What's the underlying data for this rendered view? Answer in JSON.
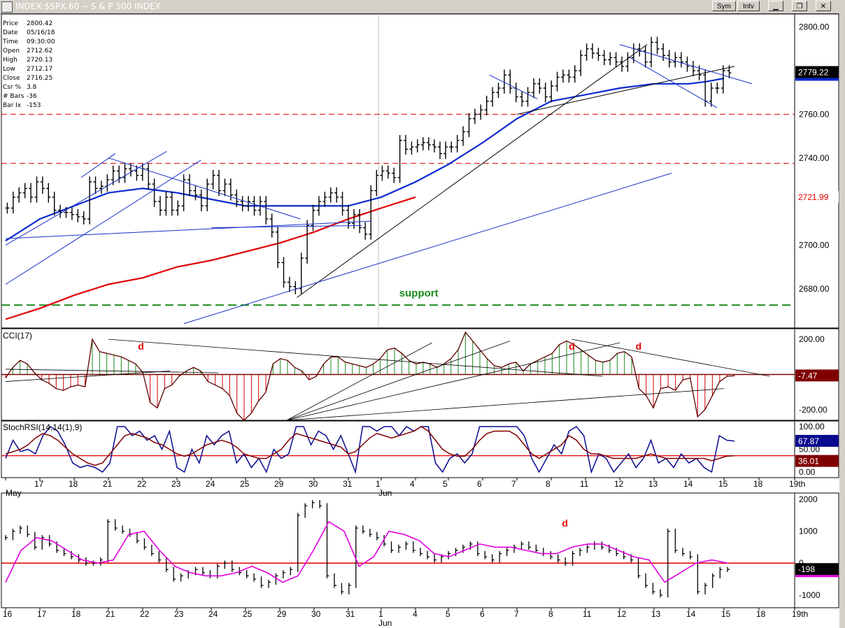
{
  "window": {
    "title": "INDEX:$SPX.60 -- S & P 500 INDEX",
    "buttons": [
      "Sym",
      "Intv"
    ]
  },
  "infobox": [
    {
      "k": "Price",
      "v": "2800.42"
    },
    {
      "k": "Date",
      "v": "05/16/18"
    },
    {
      "k": "Time",
      "v": "09:30:00"
    },
    {
      "k": "Open",
      "v": "2712.62"
    },
    {
      "k": "High",
      "v": "2720.13"
    },
    {
      "k": "Low",
      "v": "2712.17"
    },
    {
      "k": "Close",
      "v": "2716.25"
    },
    {
      "k": "Csr %",
      "v": "3.8"
    },
    {
      "k": "# Bars",
      "v": "-36"
    },
    {
      "k": "Bar Ix",
      "v": "-153"
    }
  ],
  "colors": {
    "price_bars": "#000000",
    "ma_blue": "#0a2ad0",
    "ma_red": "#e00000",
    "support": "#1a8a1a",
    "cci_pos": "#1a8a1a",
    "cci_neg": "#d00000",
    "stoch_k": "#0a0a90",
    "stoch_d": "#800000",
    "osc_ma": "#e000e0",
    "trendline_blue": "#1a30c8"
  },
  "chart_data": [
    {
      "type": "line",
      "panel": "price",
      "title": "INDEX:$SPX.60 -- S & P 500 INDEX",
      "y_ticks": [
        "2800.00",
        "2760.00",
        "2740.00",
        "2700.00",
        "2680.00"
      ],
      "ylim": [
        2662,
        2806
      ],
      "price_labels": [
        {
          "text": "2779.22",
          "value": 2779.22,
          "style": "dark"
        },
        {
          "text": "2721.99",
          "value": 2721.99,
          "style": "red"
        }
      ],
      "horizontal_levels": [
        {
          "value": 2760,
          "style": "red-dash"
        },
        {
          "value": 2737.5,
          "style": "red-dash"
        },
        {
          "value": 2672.5,
          "style": "green-dash"
        }
      ],
      "annotations": [
        {
          "text": "support",
          "x": 12.1,
          "y": 2676.5,
          "color": "green"
        }
      ],
      "closes": [
        2717,
        2722,
        2724,
        2726,
        2722,
        2729,
        2726,
        2722,
        2716,
        2715,
        2715,
        2714,
        2713,
        2712,
        2729,
        2726,
        2727,
        2730,
        2734,
        2731,
        2735,
        2734,
        2732,
        2735,
        2728,
        2720,
        2716,
        2722,
        2716,
        2718,
        2730,
        2725,
        2723,
        2718,
        2728,
        2732,
        2725,
        2728,
        2723,
        2720,
        2718,
        2720,
        2716,
        2720,
        2712,
        2706,
        2692,
        2683,
        2681,
        2680,
        2694,
        2709,
        2716,
        2720,
        2722,
        2724,
        2722,
        2716,
        2710,
        2714,
        2708,
        2705,
        2725,
        2732,
        2734,
        2733,
        2731,
        2748,
        2744,
        2745,
        2746,
        2747,
        2746,
        2745,
        2742,
        2745,
        2745,
        2748,
        2752,
        2758,
        2760,
        2762,
        2766,
        2770,
        2772,
        2778,
        2772,
        2768,
        2766,
        2770,
        2774,
        2772,
        2768,
        2773,
        2777,
        2778,
        2777,
        2780,
        2787,
        2790,
        2788,
        2787,
        2785,
        2786,
        2784,
        2782,
        2786,
        2790,
        2789,
        2784,
        2793,
        2790,
        2787,
        2784,
        2786,
        2784,
        2782,
        2780,
        2778,
        2766,
        2772,
        2772,
        2780,
        2779
      ],
      "series": [
        {
          "name": "",
          "style": "blue-ma",
          "points": [
            [
              0,
              2702
            ],
            [
              2,
              2712
            ],
            [
              4,
              2718
            ],
            [
              6,
              2724
            ],
            [
              8,
              2726
            ],
            [
              10,
              2724
            ],
            [
              12,
              2721
            ],
            [
              14,
              2718
            ],
            [
              16,
              2718
            ],
            [
              18,
              2718
            ],
            [
              20,
              2718
            ],
            [
              22,
              2722
            ],
            [
              24,
              2729
            ],
            [
              26,
              2737
            ],
            [
              28,
              2747
            ],
            [
              30,
              2758
            ],
            [
              32,
              2766
            ],
            [
              34,
              2769
            ],
            [
              36,
              2772
            ],
            [
              38,
              2774
            ],
            [
              40,
              2774
            ],
            [
              41,
              2775
            ],
            [
              42,
              2776.5
            ]
          ]
        },
        {
          "name": "",
          "style": "red-ma",
          "points": [
            [
              0,
              2666
            ],
            [
              2,
              2671
            ],
            [
              4,
              2677
            ],
            [
              6,
              2682
            ],
            [
              8,
              2685
            ],
            [
              10,
              2690
            ],
            [
              12,
              2693
            ],
            [
              14,
              2697
            ],
            [
              16,
              2701
            ],
            [
              18,
              2706
            ],
            [
              20,
              2712
            ],
            [
              22,
              2717
            ],
            [
              24,
              2722
            ]
          ]
        }
      ]
    },
    {
      "type": "bar",
      "panel": "cci",
      "title": "CCI(17)",
      "y_ticks": [
        "200.00",
        "-200.00"
      ],
      "ylim": [
        -260,
        260
      ],
      "last_value_label": "-7.47",
      "annotations": [
        {
          "text": "d",
          "x": 3.95
        },
        {
          "text": "d",
          "x": 16.6
        },
        {
          "text": "d",
          "x": 18.55
        }
      ],
      "values": [
        -20,
        40,
        80,
        60,
        10,
        -30,
        -50,
        -80,
        -90,
        -70,
        -60,
        -70,
        200,
        130,
        120,
        110,
        100,
        80,
        60,
        10,
        -160,
        -190,
        -80,
        -60,
        -10,
        20,
        40,
        20,
        -40,
        -60,
        -80,
        -120,
        -220,
        -260,
        -220,
        -150,
        -100,
        60,
        90,
        80,
        40,
        20,
        -30,
        -10,
        60,
        100,
        100,
        70,
        60,
        50,
        40,
        60,
        90,
        140,
        150,
        120,
        80,
        60,
        70,
        60,
        40,
        60,
        90,
        140,
        240,
        190,
        140,
        90,
        50,
        40,
        60,
        70,
        20,
        60,
        80,
        100,
        120,
        170,
        190,
        170,
        140,
        110,
        80,
        70,
        80,
        120,
        130,
        100,
        -80,
        -120,
        -190,
        -80,
        -70,
        -90,
        -30,
        -20,
        -240,
        -200,
        -120,
        -40,
        -10,
        -7.47
      ]
    },
    {
      "type": "line",
      "panel": "stochrsi",
      "title": "StochRSI(14,14(1),9)",
      "y_ticks": [
        "100.00",
        "50.00",
        "0.00"
      ],
      "ylim": [
        0,
        100
      ],
      "last_value_labels": [
        {
          "text": "67.87",
          "series": "K"
        },
        {
          "text": "36.01",
          "series": "D"
        }
      ],
      "series": [
        {
          "name": "K",
          "values": [
            30,
            70,
            45,
            50,
            40,
            80,
            100,
            90,
            60,
            20,
            10,
            15,
            10,
            0,
            20,
            100,
            100,
            80,
            90,
            70,
            80,
            50,
            90,
            10,
            0,
            50,
            20,
            80,
            60,
            80,
            90,
            20,
            40,
            10,
            30,
            0,
            50,
            30,
            40,
            100,
            100,
            60,
            90,
            80,
            50,
            80,
            40,
            0,
            100,
            100,
            90,
            100,
            100,
            80,
            100,
            90,
            100,
            100,
            20,
            0,
            30,
            40,
            20,
            40,
            100,
            100,
            100,
            100,
            100,
            100,
            80,
            30,
            0,
            30,
            60,
            40,
            90,
            100,
            80,
            0,
            40,
            30,
            0,
            20,
            40,
            10,
            30,
            70,
            20,
            30,
            10,
            40,
            20,
            30,
            10,
            0,
            80,
            70,
            68
          ]
        },
        {
          "name": "D",
          "values": [
            40,
            45,
            50,
            60,
            75,
            85,
            80,
            70,
            55,
            40,
            30,
            20,
            15,
            20,
            40,
            60,
            80,
            85,
            80,
            75,
            65,
            60,
            50,
            40,
            35,
            40,
            50,
            60,
            65,
            70,
            65,
            55,
            40,
            35,
            30,
            30,
            40,
            50,
            70,
            85,
            80,
            75,
            70,
            65,
            60,
            55,
            40,
            45,
            60,
            75,
            85,
            80,
            75,
            80,
            85,
            90,
            100,
            90,
            70,
            50,
            40,
            35,
            35,
            50,
            70,
            85,
            90,
            90,
            90,
            80,
            60,
            40,
            30,
            40,
            50,
            60,
            80,
            70,
            50,
            40,
            40,
            35,
            30,
            30,
            30,
            30,
            35,
            40,
            35,
            30,
            30,
            30,
            30,
            30,
            30,
            25,
            30,
            35,
            36
          ]
        }
      ],
      "level": 36.01
    },
    {
      "type": "line",
      "panel": "oscillator",
      "y_ticks": [
        "2000",
        "1000",
        "0",
        "-1000"
      ],
      "ylim": [
        -1400,
        2200
      ],
      "last_value_label": "-198",
      "annotations": [
        {
          "text": "d",
          "x": 16.4
        }
      ],
      "closes": [
        800,
        1000,
        1100,
        900,
        500,
        800,
        600,
        400,
        300,
        200,
        100,
        0,
        0,
        100,
        1300,
        1100,
        1000,
        900,
        700,
        500,
        300,
        100,
        -200,
        -500,
        -400,
        -300,
        -200,
        -300,
        -400,
        -100,
        0,
        -200,
        -300,
        -400,
        -500,
        -700,
        -600,
        -400,
        -300,
        -200,
        1500,
        1800,
        1900,
        1800,
        -400,
        -700,
        -900,
        -700,
        1100,
        1000,
        900,
        800,
        600,
        400,
        500,
        600,
        400,
        300,
        200,
        100,
        200,
        300,
        400,
        500,
        600,
        300,
        200,
        100,
        300,
        400,
        500,
        600,
        500,
        400,
        300,
        200,
        100,
        0,
        300,
        400,
        500,
        600,
        500,
        400,
        300,
        200,
        100,
        -400,
        -700,
        -900,
        -1000,
        1000,
        400,
        300,
        200,
        -900,
        -700,
        -400,
        -200,
        -198
      ],
      "series": [
        {
          "name": "",
          "style": "magenta",
          "values": [
            -600,
            400,
            800,
            700,
            400,
            100,
            0,
            100,
            900,
            1000,
            400,
            -100,
            -300,
            -400,
            -400,
            -300,
            -100,
            -300,
            -600,
            -400,
            400,
            1300,
            1000,
            -100,
            200,
            1000,
            900,
            700,
            300,
            200,
            400,
            600,
            500,
            500,
            400,
            300,
            300,
            500,
            600,
            600,
            400,
            200,
            100,
            -600,
            -300,
            0,
            100,
            0
          ]
        }
      ]
    }
  ],
  "x_axis": {
    "top_labels": [
      "17",
      "18",
      "21",
      "22",
      "23",
      "24",
      "25",
      "29",
      "30",
      "31",
      "1",
      "4",
      "5",
      "6",
      "7",
      "8",
      "11",
      "12",
      "13",
      "14",
      "15",
      "18",
      "19th"
    ],
    "bottom_labels": [
      "16",
      "17",
      "18",
      "21",
      "22",
      "23",
      "24",
      "25",
      "29",
      "30",
      "31",
      "1",
      "4",
      "5",
      "6",
      "7",
      "8",
      "11",
      "12",
      "13",
      "14",
      "15",
      "18",
      "19th"
    ],
    "month_labels": [
      "May",
      "Jun"
    ]
  }
}
